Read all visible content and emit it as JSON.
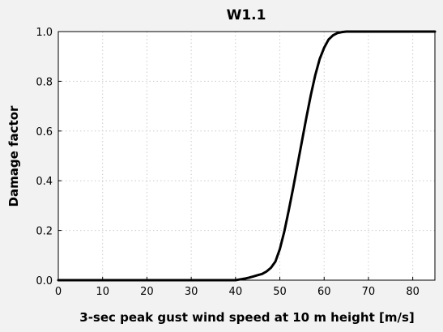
{
  "chart_data": {
    "type": "line",
    "title": "W1.1",
    "xlabel": "3-sec peak gust wind speed at 10 m height [m/s]",
    "ylabel": "Damage factor",
    "xlim": [
      0,
      85
    ],
    "ylim": [
      0.0,
      1.0
    ],
    "xticks": [
      "0",
      "10",
      "20",
      "30",
      "40",
      "50",
      "60",
      "70",
      "80"
    ],
    "yticks": [
      "0.0",
      "0.2",
      "0.4",
      "0.6",
      "0.8",
      "1.0"
    ],
    "grid": true,
    "line_color": "#000000",
    "series": [
      {
        "x": [
          0,
          10,
          20,
          30,
          38,
          40,
          41,
          42,
          43,
          44,
          45,
          46,
          47,
          48,
          49,
          50,
          51,
          52,
          53,
          54,
          55,
          56,
          57,
          58,
          59,
          60,
          61,
          62,
          63,
          64,
          65,
          66,
          70,
          75,
          80,
          85
        ],
        "values": [
          0.0,
          0.0,
          0.0,
          0.0,
          0.0,
          0.0,
          0.003,
          0.006,
          0.01,
          0.015,
          0.02,
          0.025,
          0.035,
          0.05,
          0.075,
          0.125,
          0.195,
          0.28,
          0.37,
          0.465,
          0.56,
          0.655,
          0.745,
          0.825,
          0.89,
          0.935,
          0.968,
          0.985,
          0.994,
          0.998,
          1.0,
          1.0,
          1.0,
          1.0,
          1.0,
          1.0
        ]
      }
    ]
  }
}
